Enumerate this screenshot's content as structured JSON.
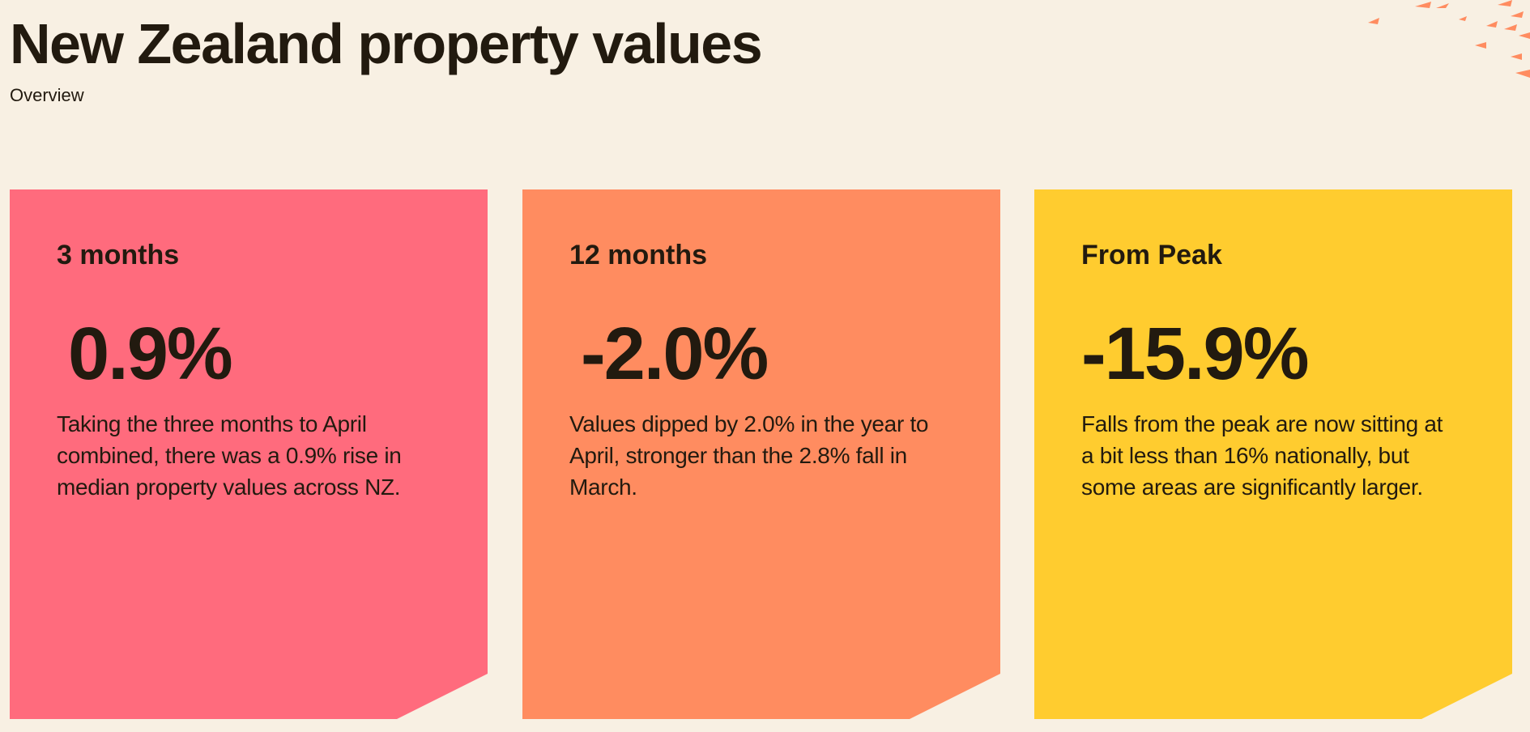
{
  "header": {
    "title": "New Zealand property values",
    "subtitle": "Overview"
  },
  "colors": {
    "background": "#f8f0e3",
    "card_3m": "#ff6b7d",
    "card_12m": "#ff8c60",
    "card_peak": "#ffcc2f",
    "text": "#221a0f",
    "decoration": "#ff8c60"
  },
  "cards": [
    {
      "label": "3 months",
      "value": "0.9%",
      "description": "Taking the three months to April combined, there was a 0.9% rise in median property values across NZ."
    },
    {
      "label": "12 months",
      "value": "-2.0%",
      "description": "Values dipped by 2.0% in the year to April, stronger than the 2.8% fall in March."
    },
    {
      "label": "From Peak",
      "value": "-15.9%",
      "description": "Falls from the peak are now sitting at a bit less than 16% nationally, but some areas are significantly larger."
    }
  ],
  "decoration": {
    "icon": "confetti-triangles-icon"
  }
}
